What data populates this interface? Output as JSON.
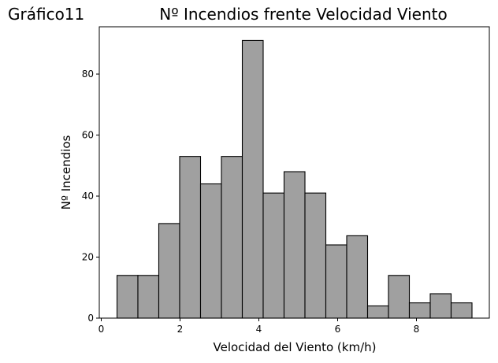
{
  "chart_data": {
    "type": "bar",
    "figure_label": "Gráfico11",
    "title": "Nº Incendios frente Velocidad Viento",
    "xlabel": "Velocidad del Viento (km/h)",
    "ylabel": "Nº Incendios",
    "xlim": [
      -0.05,
      9.85
    ],
    "ylim": [
      0,
      95.5
    ],
    "x_ticks": [
      0,
      2,
      4,
      6,
      8
    ],
    "y_ticks": [
      0,
      20,
      40,
      60,
      80
    ],
    "bin_edges": [
      0.4,
      0.93,
      1.46,
      1.99,
      2.52,
      3.05,
      3.58,
      4.11,
      4.64,
      5.17,
      5.7,
      6.23,
      6.76,
      7.29,
      7.82,
      8.35,
      8.88,
      9.41
    ],
    "values": [
      14,
      14,
      31,
      53,
      44,
      53,
      91,
      41,
      48,
      41,
      24,
      27,
      4,
      14,
      5,
      8,
      5
    ],
    "grid": false,
    "bar_color": "#a0a0a0",
    "edge_color": "#000000"
  }
}
